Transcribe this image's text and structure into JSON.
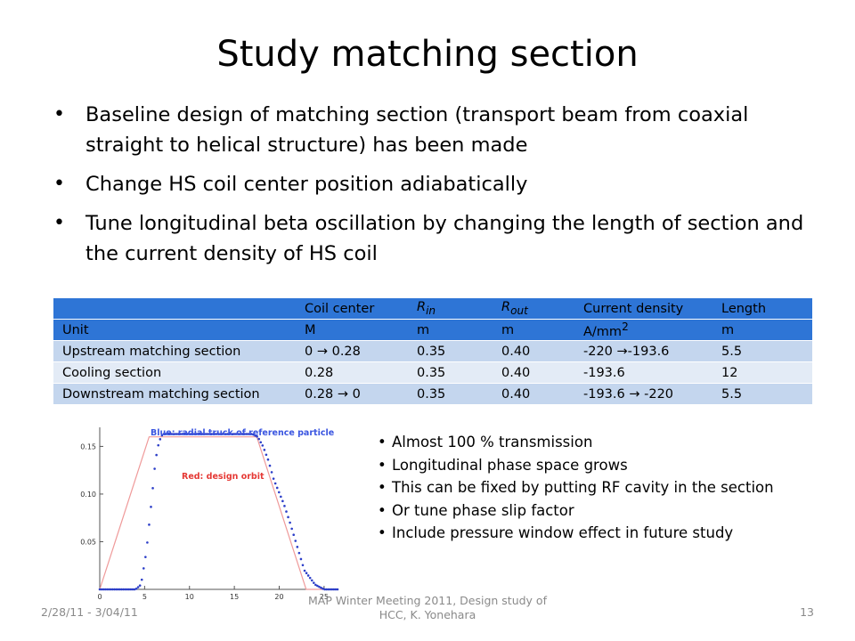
{
  "slide": {
    "title": "Study matching section",
    "bullets": [
      "Baseline design of matching section (transport beam from coaxial straight to helical structure) has been made",
      "Change HS coil center position adiabatically",
      "Tune longitudinal beta oscillation by changing the length of section and the current density of HS coil"
    ],
    "table": {
      "header1": [
        "",
        "Coil center",
        "R",
        "R",
        "Current density",
        "Length"
      ],
      "rin_sub": "in",
      "rout_sub": "out",
      "header2": [
        "Unit",
        "M",
        "m",
        "m",
        "A/mm",
        "m"
      ],
      "sup2": "2",
      "rows": [
        [
          "Upstream matching section",
          "0 → 0.28",
          "0.35",
          "0.40",
          "-220 →-193.6",
          "5.5"
        ],
        [
          "Cooling section",
          "0.28",
          "0.35",
          "0.40",
          "-193.6",
          "12"
        ],
        [
          "Downstream matching section",
          "0.28 → 0",
          "0.35",
          "0.40",
          "-193.6 → -220",
          "5.5"
        ]
      ]
    },
    "side_bullets": [
      "Almost 100 % transmission",
      "Longitudinal phase space grows",
      "This can be fixed by putting RF cavity in the section",
      "Or tune phase slip factor",
      "Include pressure window effect in future study"
    ],
    "footer": {
      "date": "2/28/11 - 3/04/11",
      "center": "MAP Winter Meeting 2011, Design study of HCC, K. Yonehara",
      "page": "13"
    }
  },
  "chart_data": {
    "type": "line",
    "annotations": [
      "Blue: radial truck of reference particle",
      "Red: design orbit"
    ],
    "x_ticks": [
      "0",
      "5",
      "10",
      "15",
      "20",
      "25"
    ],
    "y_ticks": [
      "0.05",
      "0.10",
      "0.15"
    ],
    "xlim": [
      0,
      26.5
    ],
    "ylim": [
      0,
      0.17
    ],
    "series": [
      {
        "color": "#ef9a9a",
        "style": "line",
        "x": [
          0,
          5.5,
          17.5,
          23,
          26.5
        ],
        "y": [
          0,
          0.16,
          0.16,
          0,
          0
        ]
      },
      {
        "color": "#2c3ec8",
        "style": "dots",
        "x": [
          0,
          4,
          4.6,
          5.2,
          5.8,
          6.2,
          6.6,
          7,
          17,
          17.6,
          18.2,
          18.8,
          19.4,
          20.5,
          21.2,
          22,
          22.8,
          24,
          25,
          26.5
        ],
        "y": [
          0,
          0,
          0.005,
          0.04,
          0.095,
          0.135,
          0.155,
          0.163,
          0.163,
          0.16,
          0.15,
          0.135,
          0.115,
          0.09,
          0.07,
          0.045,
          0.02,
          0.005,
          0,
          0
        ]
      }
    ],
    "grid": false
  }
}
